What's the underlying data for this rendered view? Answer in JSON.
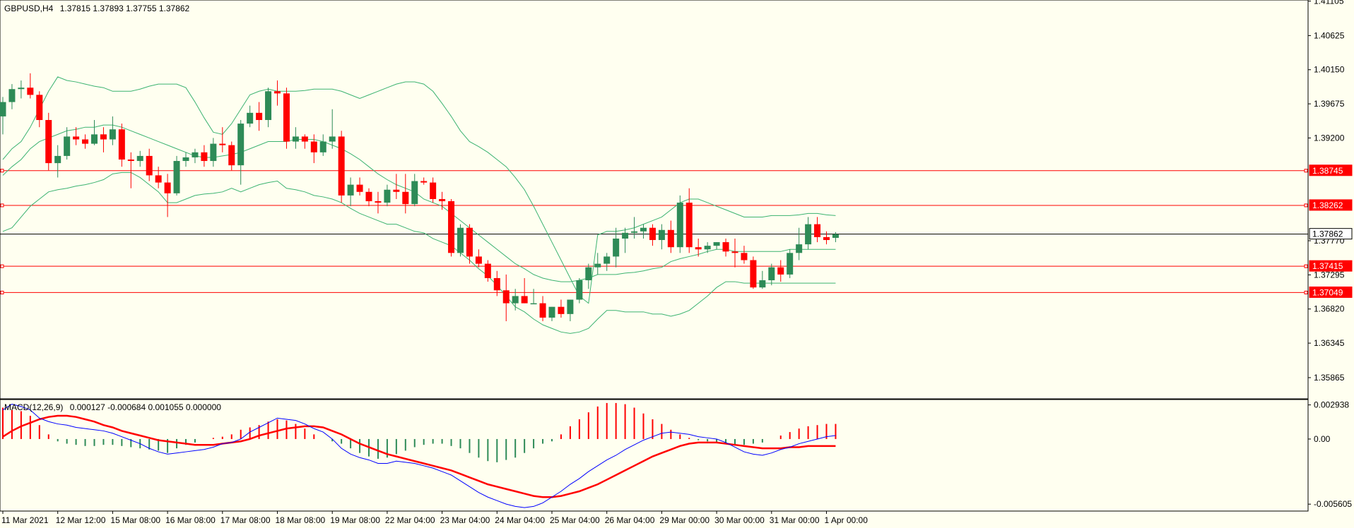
{
  "symbol_info": {
    "symbol": "GBPUSD,H4",
    "ohlc": "1.37815 1.37893 1.37755 1.37862"
  },
  "macd_info": {
    "label": "MACD(12,26,9)",
    "values": "0.000127 -0.000684 0.001055 0.000000"
  },
  "colors": {
    "background": "#fffff0",
    "bull": "#2e8b57",
    "bear": "#ff0000",
    "bands": "#3cb371",
    "level": "#ff0000",
    "current_price_line": "#000000",
    "macd_line": "#0000ff",
    "signal_line": "#ff0000"
  },
  "chart_data": [
    {
      "type": "candlestick",
      "y_ticks": [
        "1.41105",
        "1.40625",
        "1.40150",
        "1.39675",
        "1.39200",
        "1.38745",
        "1.38262",
        "1.37862",
        "1.37770",
        "1.37415",
        "1.37295",
        "1.37049",
        "1.36820",
        "1.36345",
        "1.35865"
      ],
      "ylim": [
        1.3557,
        1.4112
      ],
      "x_labels": [
        "11 Mar 2021",
        "12 Mar 12:00",
        "15 Mar 08:00",
        "16 Mar 08:00",
        "17 Mar 08:00",
        "18 Mar 08:00",
        "19 Mar 08:00",
        "22 Mar 04:00",
        "23 Mar 04:00",
        "24 Mar 04:00",
        "25 Mar 04:00",
        "26 Mar 04:00",
        "29 Mar 00:00",
        "30 Mar 00:00",
        "31 Mar 00:00",
        "1 Apr 00:00"
      ],
      "x_label_bar_index": [
        0,
        6,
        12,
        18,
        24,
        30,
        36,
        42,
        48,
        54,
        60,
        66,
        72,
        78,
        84,
        90
      ],
      "horizontal_levels": [
        1.38745,
        1.38262,
        1.37415,
        1.37049
      ],
      "current_price": 1.37862,
      "candles": [
        [
          1.395,
          1.3977,
          1.3925,
          1.397
        ],
        [
          1.397,
          1.3995,
          1.396,
          1.3988
        ],
        [
          1.3988,
          1.4,
          1.3975,
          1.399
        ],
        [
          1.399,
          1.401,
          1.3975,
          1.398
        ],
        [
          1.398,
          1.3985,
          1.3935,
          1.3945
        ],
        [
          1.3945,
          1.3955,
          1.3875,
          1.3885
        ],
        [
          1.3885,
          1.391,
          1.3865,
          1.3895
        ],
        [
          1.3895,
          1.3935,
          1.389,
          1.3922
        ],
        [
          1.3922,
          1.3935,
          1.391,
          1.3918
        ],
        [
          1.3918,
          1.3925,
          1.3905,
          1.3912
        ],
        [
          1.3912,
          1.3945,
          1.391,
          1.3925
        ],
        [
          1.3925,
          1.3935,
          1.39,
          1.3918
        ],
        [
          1.3918,
          1.395,
          1.391,
          1.3932
        ],
        [
          1.3932,
          1.394,
          1.388,
          1.389
        ],
        [
          1.389,
          1.39,
          1.385,
          1.3888
        ],
        [
          1.3888,
          1.3902,
          1.388,
          1.3895
        ],
        [
          1.3895,
          1.3905,
          1.386,
          1.3868
        ],
        [
          1.3868,
          1.388,
          1.385,
          1.3858
        ],
        [
          1.3858,
          1.387,
          1.381,
          1.3843
        ],
        [
          1.3843,
          1.3895,
          1.384,
          1.3888
        ],
        [
          1.3888,
          1.39,
          1.388,
          1.3893
        ],
        [
          1.3893,
          1.3905,
          1.3885,
          1.39
        ],
        [
          1.39,
          1.391,
          1.388,
          1.3888
        ],
        [
          1.3888,
          1.392,
          1.388,
          1.3912
        ],
        [
          1.3912,
          1.3935,
          1.39,
          1.391
        ],
        [
          1.391,
          1.3915,
          1.3875,
          1.3882
        ],
        [
          1.3882,
          1.3945,
          1.3855,
          1.394
        ],
        [
          1.394,
          1.3965,
          1.3935,
          1.3955
        ],
        [
          1.3955,
          1.397,
          1.393,
          1.3945
        ],
        [
          1.3945,
          1.399,
          1.3935,
          1.3985
        ],
        [
          1.3985,
          1.4,
          1.3965,
          1.3982
        ],
        [
          1.3982,
          1.399,
          1.3905,
          1.3915
        ],
        [
          1.3915,
          1.3935,
          1.3905,
          1.3922
        ],
        [
          1.3922,
          1.3925,
          1.3905,
          1.3915
        ],
        [
          1.3915,
          1.3925,
          1.3885,
          1.39
        ],
        [
          1.39,
          1.3925,
          1.3895,
          1.3915
        ],
        [
          1.3915,
          1.396,
          1.3905,
          1.3922
        ],
        [
          1.3922,
          1.393,
          1.383,
          1.384
        ],
        [
          1.384,
          1.3865,
          1.3825,
          1.3855
        ],
        [
          1.3855,
          1.3865,
          1.384,
          1.3845
        ],
        [
          1.3845,
          1.385,
          1.3825,
          1.3832
        ],
        [
          1.3832,
          1.3845,
          1.3815,
          1.383
        ],
        [
          1.383,
          1.3855,
          1.3825,
          1.3848
        ],
        [
          1.3848,
          1.387,
          1.3835,
          1.3845
        ],
        [
          1.3845,
          1.387,
          1.3815,
          1.3828
        ],
        [
          1.3828,
          1.387,
          1.3825,
          1.386
        ],
        [
          1.386,
          1.3865,
          1.3855,
          1.3858
        ],
        [
          1.3858,
          1.3865,
          1.383,
          1.3835
        ],
        [
          1.3835,
          1.3845,
          1.382,
          1.3832
        ],
        [
          1.3832,
          1.3835,
          1.3755,
          1.376
        ],
        [
          1.376,
          1.38,
          1.3755,
          1.3795
        ],
        [
          1.3795,
          1.38,
          1.3745,
          1.3755
        ],
        [
          1.3755,
          1.3765,
          1.374,
          1.3745
        ],
        [
          1.3745,
          1.375,
          1.372,
          1.3725
        ],
        [
          1.3725,
          1.3735,
          1.37,
          1.3708
        ],
        [
          1.3708,
          1.373,
          1.3665,
          1.369
        ],
        [
          1.369,
          1.371,
          1.368,
          1.37
        ],
        [
          1.37,
          1.3725,
          1.369,
          1.369
        ],
        [
          1.369,
          1.371,
          1.369,
          1.369
        ],
        [
          1.369,
          1.37,
          1.3665,
          1.367
        ],
        [
          1.367,
          1.3685,
          1.3665,
          1.3685
        ],
        [
          1.3685,
          1.3695,
          1.367,
          1.3675
        ],
        [
          1.3675,
          1.3695,
          1.3665,
          1.3695
        ],
        [
          1.3695,
          1.3725,
          1.369,
          1.3722
        ],
        [
          1.3722,
          1.3745,
          1.371,
          1.374
        ],
        [
          1.374,
          1.376,
          1.373,
          1.3745
        ],
        [
          1.3745,
          1.376,
          1.3735,
          1.3755
        ],
        [
          1.3755,
          1.3795,
          1.374,
          1.378
        ],
        [
          1.378,
          1.3795,
          1.376,
          1.3788
        ],
        [
          1.3788,
          1.381,
          1.378,
          1.379
        ],
        [
          1.379,
          1.38,
          1.378,
          1.3795
        ],
        [
          1.3795,
          1.38,
          1.377,
          1.3778
        ],
        [
          1.3778,
          1.38,
          1.3765,
          1.3792
        ],
        [
          1.3792,
          1.3805,
          1.376,
          1.3768
        ],
        [
          1.3768,
          1.384,
          1.376,
          1.383
        ],
        [
          1.383,
          1.385,
          1.376,
          1.3768
        ],
        [
          1.3768,
          1.378,
          1.3755,
          1.3765
        ],
        [
          1.3765,
          1.3775,
          1.376,
          1.377
        ],
        [
          1.377,
          1.3775,
          1.3765,
          1.3775
        ],
        [
          1.3775,
          1.378,
          1.3755,
          1.3762
        ],
        [
          1.3762,
          1.378,
          1.374,
          1.376
        ],
        [
          1.376,
          1.377,
          1.3745,
          1.375
        ],
        [
          1.375,
          1.3755,
          1.371,
          1.3712
        ],
        [
          1.3712,
          1.3735,
          1.371,
          1.3722
        ],
        [
          1.3722,
          1.3745,
          1.3715,
          1.374
        ],
        [
          1.374,
          1.375,
          1.372,
          1.373
        ],
        [
          1.373,
          1.3765,
          1.3725,
          1.376
        ],
        [
          1.376,
          1.3795,
          1.375,
          1.3772
        ],
        [
          1.3772,
          1.381,
          1.3765,
          1.38
        ],
        [
          1.38,
          1.381,
          1.3775,
          1.3782
        ],
        [
          1.3782,
          1.379,
          1.3772,
          1.3778
        ],
        [
          1.3781,
          1.3789,
          1.3775,
          1.3786
        ]
      ],
      "bollinger_upper": [
        1.389,
        1.3905,
        1.3915,
        1.3935,
        1.396,
        1.3985,
        1.4005,
        1.4,
        1.3998,
        1.3995,
        1.3992,
        1.399,
        1.3985,
        1.3985,
        1.3985,
        1.3988,
        1.3992,
        1.3995,
        1.3995,
        1.3995,
        1.399,
        1.397,
        1.3948,
        1.3928,
        1.3925,
        1.394,
        1.396,
        1.398,
        1.3985,
        1.3988,
        1.3985,
        1.3985,
        1.3985,
        1.3986,
        1.3988,
        1.3988,
        1.3988,
        1.3985,
        1.398,
        1.3975,
        1.398,
        1.3985,
        1.399,
        1.3995,
        1.3998,
        1.3998,
        1.3995,
        1.3985,
        1.3968,
        1.395,
        1.393,
        1.3915,
        1.3908,
        1.39,
        1.389,
        1.388,
        1.3865,
        1.3848,
        1.3825,
        1.38,
        1.3775,
        1.375,
        1.3725,
        1.37,
        1.369,
        1.3785,
        1.379,
        1.379,
        1.3792,
        1.3795,
        1.38,
        1.3805,
        1.381,
        1.382,
        1.383,
        1.3835,
        1.3835,
        1.383,
        1.3825,
        1.382,
        1.3815,
        1.381,
        1.381,
        1.381,
        1.3812,
        1.3812,
        1.3812,
        1.3813,
        1.3815,
        1.3815,
        1.3813,
        1.3812
      ],
      "bollinger_middle": [
        1.3868,
        1.388,
        1.389,
        1.3905,
        1.3915,
        1.392,
        1.3925,
        1.393,
        1.3932,
        1.3935,
        1.3935,
        1.3938,
        1.3938,
        1.3935,
        1.393,
        1.3925,
        1.392,
        1.3915,
        1.391,
        1.3905,
        1.39,
        1.3895,
        1.3893,
        1.3893,
        1.3895,
        1.3897,
        1.39,
        1.3905,
        1.391,
        1.3915,
        1.3915,
        1.3915,
        1.3918,
        1.3918,
        1.3918,
        1.3915,
        1.391,
        1.3905,
        1.3898,
        1.389,
        1.388,
        1.387,
        1.3862,
        1.3855,
        1.385,
        1.3845,
        1.3835,
        1.383,
        1.3825,
        1.3815,
        1.3805,
        1.3795,
        1.3785,
        1.3775,
        1.3765,
        1.3755,
        1.3745,
        1.3738,
        1.373,
        1.3725,
        1.3722,
        1.372,
        1.372,
        1.3722,
        1.3725,
        1.373,
        1.373,
        1.373,
        1.3732,
        1.3733,
        1.3735,
        1.3738,
        1.374,
        1.3748,
        1.3752,
        1.3755,
        1.3758,
        1.3762,
        1.3765,
        1.3765,
        1.3762,
        1.3762,
        1.3762,
        1.3762,
        1.3762,
        1.3762,
        1.3765,
        1.3765,
        1.3765,
        1.3765,
        1.3765,
        1.3765
      ],
      "bollinger_lower": [
        1.379,
        1.3795,
        1.381,
        1.3825,
        1.3835,
        1.3845,
        1.3848,
        1.385,
        1.3853,
        1.3855,
        1.3858,
        1.3862,
        1.387,
        1.3872,
        1.3872,
        1.3865,
        1.3855,
        1.3845,
        1.383,
        1.383,
        1.3835,
        1.384,
        1.3842,
        1.3843,
        1.3845,
        1.385,
        1.3845,
        1.385,
        1.3855,
        1.3858,
        1.386,
        1.385,
        1.3848,
        1.3845,
        1.384,
        1.3838,
        1.3835,
        1.383,
        1.3822,
        1.3815,
        1.381,
        1.3805,
        1.38,
        1.38,
        1.3795,
        1.379,
        1.3788,
        1.378,
        1.3775,
        1.377,
        1.376,
        1.375,
        1.3738,
        1.3728,
        1.3715,
        1.37,
        1.3685,
        1.3678,
        1.3668,
        1.366,
        1.3655,
        1.365,
        1.3648,
        1.365,
        1.3655,
        1.3668,
        1.368,
        1.368,
        1.3678,
        1.3678,
        1.3678,
        1.3675,
        1.3675,
        1.3672,
        1.3675,
        1.368,
        1.369,
        1.37,
        1.3712,
        1.372,
        1.372,
        1.3718,
        1.3718,
        1.3718,
        1.3718,
        1.3718,
        1.3718,
        1.3718,
        1.3718,
        1.3718,
        1.3718,
        1.3718
      ]
    },
    {
      "type": "macd",
      "y_ticks": [
        "0.002938",
        "0.00",
        "-0.005605"
      ],
      "ylim": [
        -0.0062,
        0.0034
      ],
      "histogram": [
        0.0027,
        0.0025,
        0.0024,
        0.002,
        0.0012,
        0.0004,
        -0.0002,
        -0.0004,
        -0.0005,
        -0.0006,
        -0.0006,
        -0.0005,
        -0.0005,
        -0.0006,
        -0.0007,
        -0.0008,
        -0.0009,
        -0.001,
        -0.0012,
        -0.0008,
        -0.0005,
        -0.0003,
        0.0,
        0.0001,
        0.0002,
        0.0004,
        0.0008,
        0.001,
        0.0012,
        0.0015,
        0.0017,
        0.0016,
        0.0013,
        0.0009,
        0.0004,
        0.0,
        -0.0002,
        -0.0004,
        -0.0008,
        -0.0012,
        -0.0015,
        -0.0017,
        -0.0016,
        -0.0013,
        -0.001,
        -0.0007,
        -0.0005,
        -0.0004,
        -0.0004,
        -0.0006,
        -0.0008,
        -0.0012,
        -0.0016,
        -0.0019,
        -0.002,
        -0.0018,
        -0.0016,
        -0.0012,
        -0.0008,
        -0.0004,
        -0.0002,
        0.0004,
        0.0011,
        0.0017,
        0.0023,
        0.0028,
        0.0031,
        0.0031,
        0.003,
        0.0027,
        0.0022,
        0.0017,
        0.0013,
        0.0008,
        0.0004,
        0.0001,
        -0.0001,
        -0.0002,
        -0.0003,
        -0.0004,
        -0.0005,
        -0.0005,
        -0.0004,
        -0.0003,
        0.0,
        0.0003,
        0.0006,
        0.0009,
        0.0011,
        0.0012,
        0.0013,
        0.0013
      ],
      "signal": [
        0.0002,
        0.0007,
        0.0011,
        0.0014,
        0.0017,
        0.0019,
        0.002,
        0.002,
        0.0019,
        0.0017,
        0.0015,
        0.0012,
        0.001,
        0.0007,
        0.0005,
        0.0003,
        0.0001,
        -0.0001,
        -0.0002,
        -0.0003,
        -0.0004,
        -0.0005,
        -0.0005,
        -0.0005,
        -0.0004,
        -0.0003,
        -0.0002,
        0.0,
        0.0003,
        0.0005,
        0.0007,
        0.0009,
        0.001,
        0.0011,
        0.0011,
        0.001,
        0.0007,
        0.0004,
        0.0,
        -0.0004,
        -0.0007,
        -0.001,
        -0.0013,
        -0.0015,
        -0.0017,
        -0.0019,
        -0.0021,
        -0.0023,
        -0.0025,
        -0.0027,
        -0.003,
        -0.0033,
        -0.0036,
        -0.0039,
        -0.0041,
        -0.0043,
        -0.0045,
        -0.0047,
        -0.0049,
        -0.005,
        -0.005,
        -0.0049,
        -0.0047,
        -0.0045,
        -0.0042,
        -0.0039,
        -0.0035,
        -0.0031,
        -0.0027,
        -0.0023,
        -0.0019,
        -0.0015,
        -0.0012,
        -0.0009,
        -0.0006,
        -0.0004,
        -0.0003,
        -0.0003,
        -0.0003,
        -0.0004,
        -0.0005,
        -0.0006,
        -0.0007,
        -0.0008,
        -0.0008,
        -0.0008,
        -0.0007,
        -0.0007,
        -0.0006,
        -0.0006,
        -0.0006,
        -0.0006
      ],
      "macd": [
        0.0025,
        0.003,
        0.0028,
        0.0025,
        0.0018,
        0.0015,
        0.0013,
        0.0012,
        0.001,
        0.0009,
        0.0008,
        0.0007,
        0.0005,
        0.0002,
        -0.0001,
        -0.0004,
        -0.0008,
        -0.0011,
        -0.0013,
        -0.0012,
        -0.0011,
        -0.001,
        -0.0009,
        -0.0007,
        -0.0004,
        -0.0003,
        0.0,
        0.0006,
        0.001,
        0.0014,
        0.0018,
        0.0017,
        0.0016,
        0.0013,
        0.0009,
        0.0006,
        0.0,
        -0.0008,
        -0.0013,
        -0.0016,
        -0.0018,
        -0.0021,
        -0.0021,
        -0.0019,
        -0.002,
        -0.0021,
        -0.0023,
        -0.0025,
        -0.0028,
        -0.0031,
        -0.0036,
        -0.0041,
        -0.0046,
        -0.005,
        -0.0053,
        -0.0056,
        -0.0058,
        -0.0059,
        -0.0058,
        -0.0055,
        -0.005,
        -0.0045,
        -0.0039,
        -0.0034,
        -0.0028,
        -0.0023,
        -0.0018,
        -0.0014,
        -0.0009,
        -0.0005,
        -0.0001,
        0.0002,
        0.0005,
        0.0006,
        0.0005,
        0.0004,
        0.0002,
        0.0001,
        0.0,
        -0.0003,
        -0.0007,
        -0.0011,
        -0.0013,
        -0.0014,
        -0.0012,
        -0.0009,
        -0.0007,
        -0.0004,
        -0.0002,
        0.0,
        0.0002,
        0.0003
      ]
    }
  ]
}
